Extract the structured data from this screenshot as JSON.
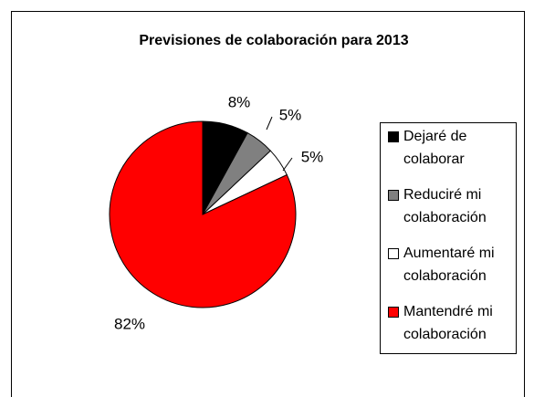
{
  "chart_data": {
    "type": "pie",
    "title": "Previsiones de colaboración para 2013",
    "categories": [
      "Dejaré de colaborar",
      "Reduciré mi colaboración",
      "Aumentaré mi colaboración",
      "Mantendré mi colaboración"
    ],
    "values": [
      8,
      5,
      5,
      82
    ],
    "value_labels": [
      "8%",
      "5%",
      "5%",
      "82%"
    ],
    "colors": [
      "#000000",
      "#808080",
      "#ffffff",
      "#ff0000"
    ],
    "legend": "right"
  }
}
